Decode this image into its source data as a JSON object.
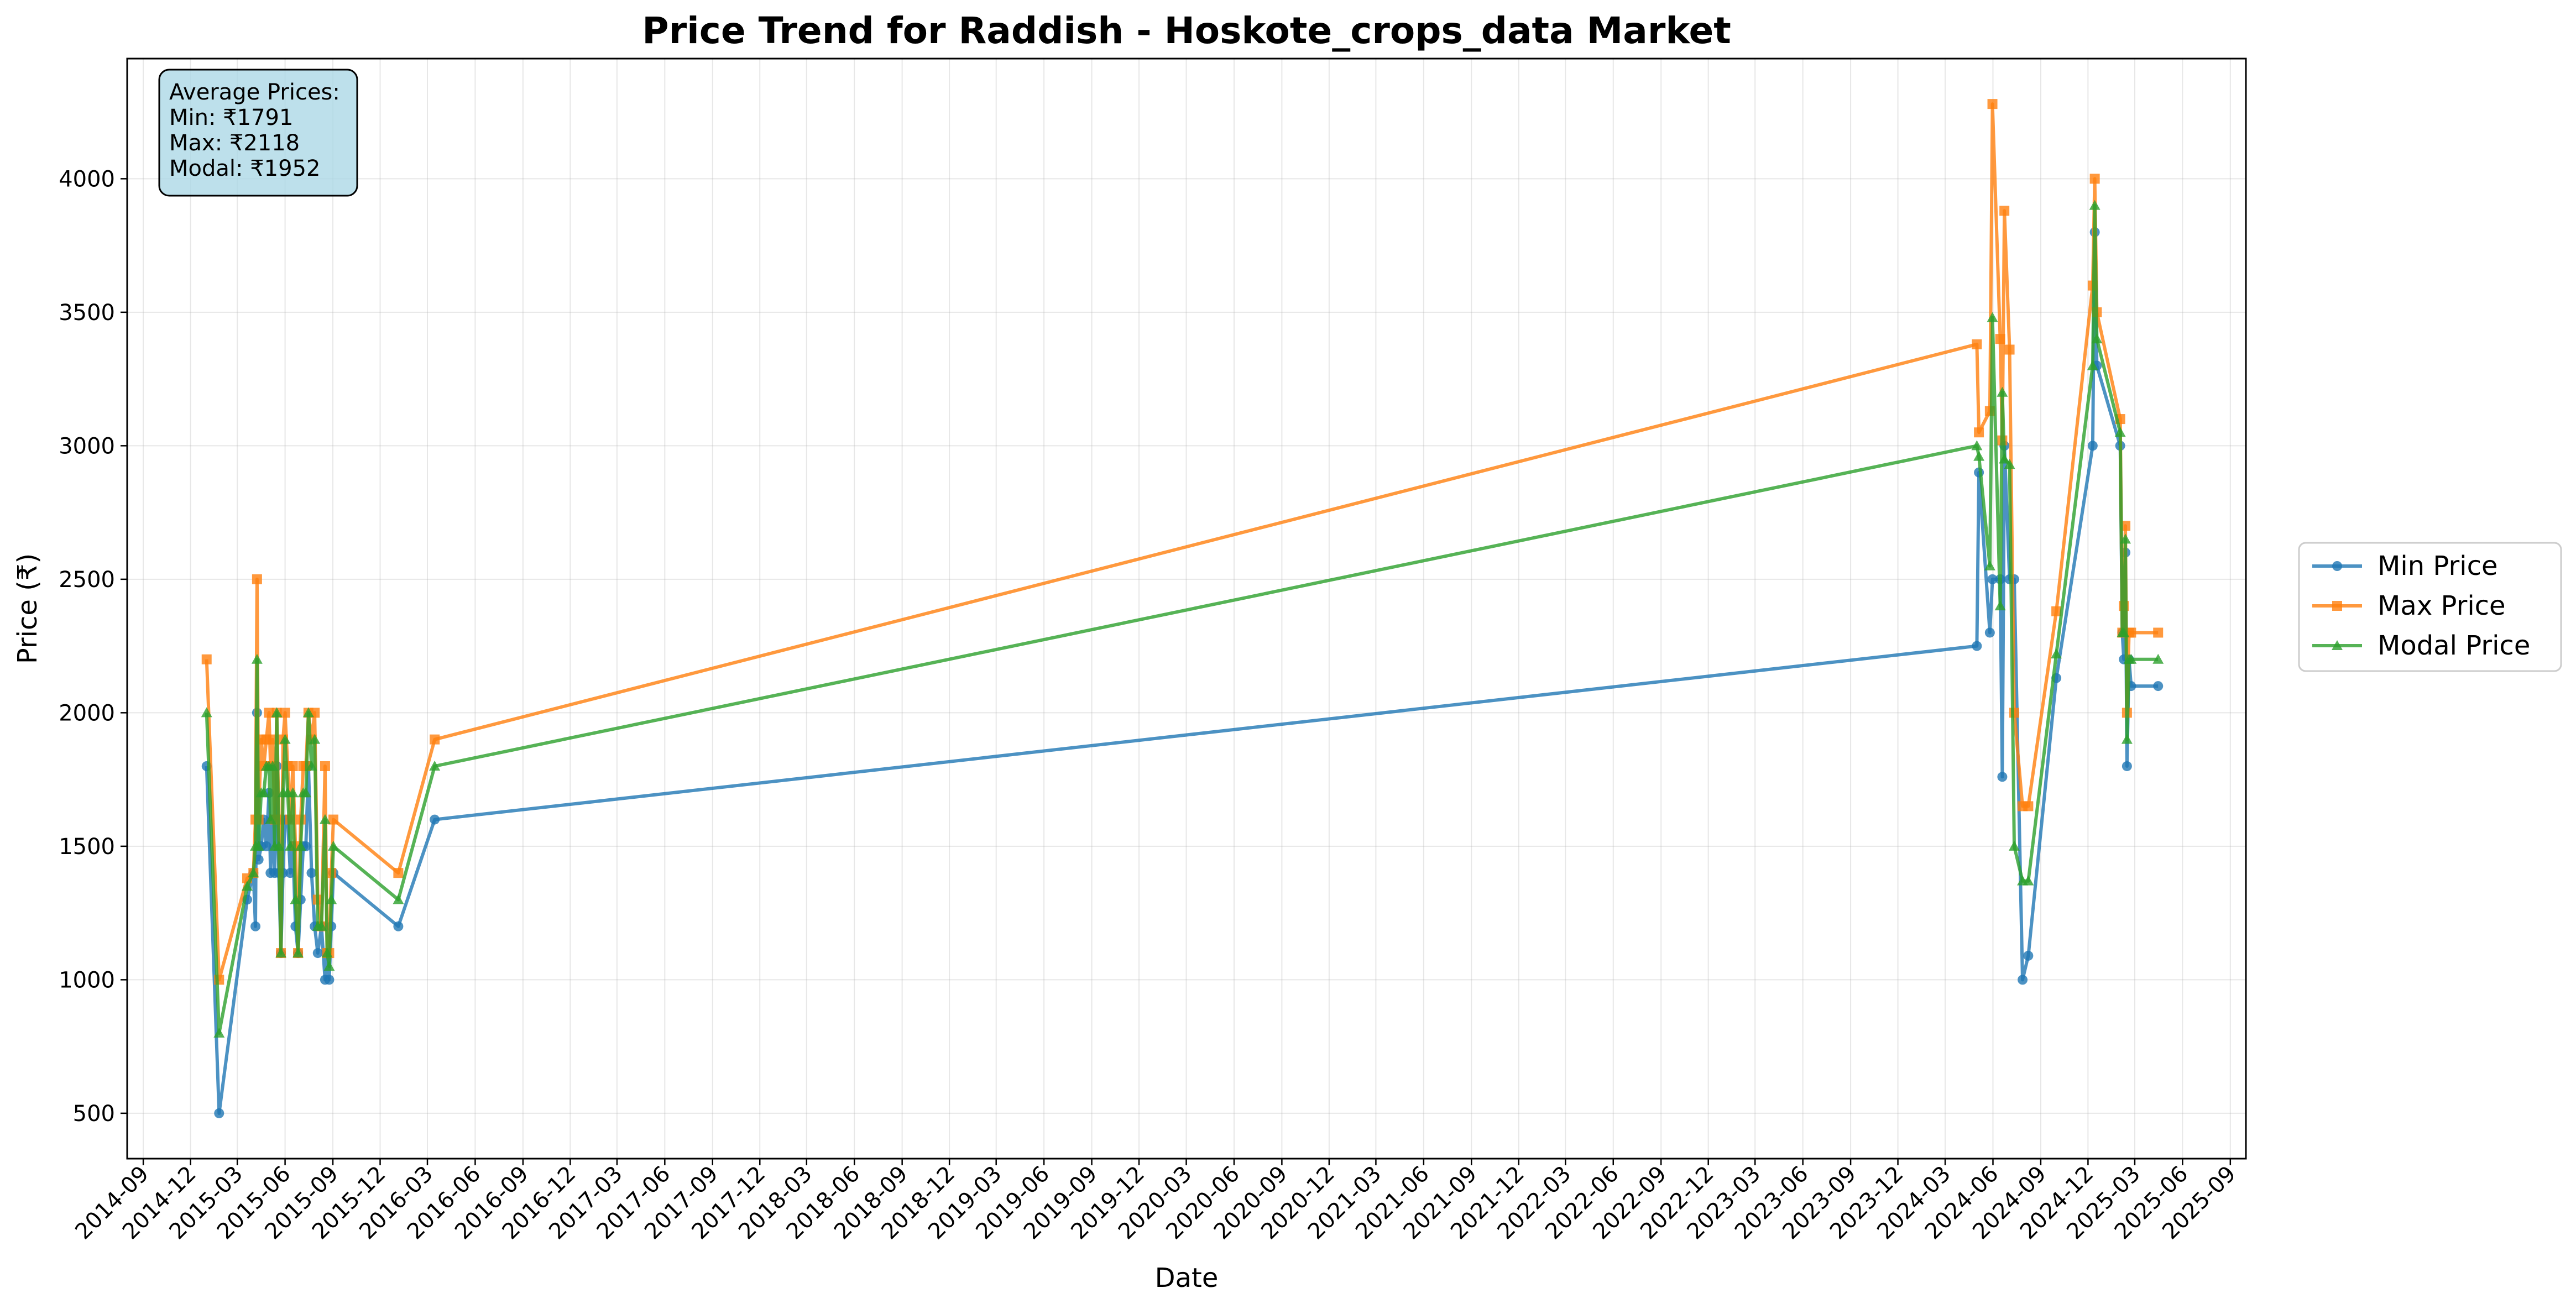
{
  "chart_data": {
    "type": "line",
    "title": "Price Trend for Raddish - Hoskote_crops_data Market",
    "xlabel": "Date",
    "ylabel": "Price (₹)",
    "ylim": [
      330,
      4450
    ],
    "xlim": [
      "2014-08-01",
      "2025-10-01"
    ],
    "grid": true,
    "legend_position": "right, outside plot",
    "yticks": [
      500,
      1000,
      1500,
      2000,
      2500,
      3000,
      3500,
      4000
    ],
    "xticks": [
      "2014-09",
      "2014-12",
      "2015-03",
      "2015-06",
      "2015-09",
      "2015-12",
      "2016-03",
      "2016-06",
      "2016-09",
      "2016-12",
      "2017-03",
      "2017-06",
      "2017-09",
      "2017-12",
      "2018-03",
      "2018-06",
      "2018-09",
      "2018-12",
      "2019-03",
      "2019-06",
      "2019-09",
      "2019-12",
      "2020-03",
      "2020-06",
      "2020-09",
      "2020-12",
      "2021-03",
      "2021-06",
      "2021-09",
      "2021-12",
      "2022-03",
      "2022-06",
      "2022-09",
      "2022-12",
      "2023-03",
      "2023-06",
      "2023-09",
      "2023-12",
      "2024-03",
      "2024-06",
      "2024-09",
      "2024-12",
      "2025-03",
      "2025-06",
      "2025-09"
    ],
    "stats_box": {
      "heading": "Average Prices:",
      "min": "Min: ₹1791",
      "max": "Max: ₹2118",
      "modal": "Modal: ₹1952"
    },
    "series": [
      {
        "name": "Min Price",
        "color": "#1f77b4",
        "marker": "circle",
        "points": [
          [
            "2015-01-01",
            1800
          ],
          [
            "2015-01-25",
            500
          ],
          [
            "2015-03-20",
            1300
          ],
          [
            "2015-04-01",
            1400
          ],
          [
            "2015-04-05",
            1200
          ],
          [
            "2015-04-08",
            2000
          ],
          [
            "2015-04-11",
            1450
          ],
          [
            "2015-04-16",
            1500
          ],
          [
            "2015-04-21",
            1600
          ],
          [
            "2015-04-26",
            1500
          ],
          [
            "2015-05-01",
            1700
          ],
          [
            "2015-05-04",
            1400
          ],
          [
            "2015-05-08",
            1600
          ],
          [
            "2015-05-12",
            1400
          ],
          [
            "2015-05-16",
            1800
          ],
          [
            "2015-05-20",
            1400
          ],
          [
            "2015-05-24",
            1100
          ],
          [
            "2015-05-28",
            1400
          ],
          [
            "2015-06-01",
            1600
          ],
          [
            "2015-06-06",
            1600
          ],
          [
            "2015-06-11",
            1400
          ],
          [
            "2015-06-16",
            1500
          ],
          [
            "2015-06-21",
            1200
          ],
          [
            "2015-06-26",
            1100
          ],
          [
            "2015-07-01",
            1300
          ],
          [
            "2015-07-06",
            1500
          ],
          [
            "2015-07-11",
            1500
          ],
          [
            "2015-07-16",
            1800
          ],
          [
            "2015-07-22",
            1400
          ],
          [
            "2015-07-28",
            1200
          ],
          [
            "2015-08-03",
            1100
          ],
          [
            "2015-08-10",
            1200
          ],
          [
            "2015-08-17",
            1000
          ],
          [
            "2015-08-21",
            1100
          ],
          [
            "2015-08-25",
            1000
          ],
          [
            "2015-08-29",
            1200
          ],
          [
            "2015-09-02",
            1400
          ],
          [
            "2016-01-05",
            1200
          ],
          [
            "2016-03-15",
            1600
          ],
          [
            "2024-05-01",
            2250
          ],
          [
            "2024-05-05",
            2900
          ],
          [
            "2024-05-26",
            2300
          ],
          [
            "2024-05-31",
            2500
          ],
          [
            "2024-06-15",
            2500
          ],
          [
            "2024-06-19",
            1760
          ],
          [
            "2024-06-23",
            3000
          ],
          [
            "2024-07-03",
            2500
          ],
          [
            "2024-07-12",
            2500
          ],
          [
            "2024-07-28",
            1000
          ],
          [
            "2024-08-08",
            1090
          ],
          [
            "2024-10-01",
            2130
          ],
          [
            "2024-12-10",
            3000
          ],
          [
            "2024-12-14",
            3800
          ],
          [
            "2024-12-18",
            3300
          ],
          [
            "2025-02-01",
            3000
          ],
          [
            "2025-02-05",
            2300
          ],
          [
            "2025-02-08",
            2200
          ],
          [
            "2025-02-11",
            2600
          ],
          [
            "2025-02-14",
            1800
          ],
          [
            "2025-02-18",
            2200
          ],
          [
            "2025-02-22",
            2100
          ],
          [
            "2025-04-15",
            2100
          ]
        ]
      },
      {
        "name": "Max Price",
        "color": "#ff7f0e",
        "marker": "square",
        "points": [
          [
            "2015-01-01",
            2200
          ],
          [
            "2015-01-25",
            1000
          ],
          [
            "2015-03-20",
            1380
          ],
          [
            "2015-04-01",
            1400
          ],
          [
            "2015-04-05",
            1600
          ],
          [
            "2015-04-08",
            2500
          ],
          [
            "2015-04-11",
            1600
          ],
          [
            "2015-04-16",
            1900
          ],
          [
            "2015-04-21",
            1800
          ],
          [
            "2015-04-26",
            1900
          ],
          [
            "2015-05-01",
            2000
          ],
          [
            "2015-05-04",
            1800
          ],
          [
            "2015-05-08",
            1900
          ],
          [
            "2015-05-12",
            1600
          ],
          [
            "2015-05-16",
            2000
          ],
          [
            "2015-05-20",
            1600
          ],
          [
            "2015-05-24",
            1100
          ],
          [
            "2015-05-28",
            1900
          ],
          [
            "2015-06-01",
            2000
          ],
          [
            "2015-06-06",
            1800
          ],
          [
            "2015-06-11",
            1600
          ],
          [
            "2015-06-16",
            1800
          ],
          [
            "2015-06-21",
            1500
          ],
          [
            "2015-06-26",
            1100
          ],
          [
            "2015-07-01",
            1600
          ],
          [
            "2015-07-06",
            1800
          ],
          [
            "2015-07-11",
            1800
          ],
          [
            "2015-07-16",
            2000
          ],
          [
            "2015-07-22",
            1900
          ],
          [
            "2015-07-28",
            2000
          ],
          [
            "2015-08-03",
            1300
          ],
          [
            "2015-08-10",
            1200
          ],
          [
            "2015-08-17",
            1800
          ],
          [
            "2015-08-21",
            1100
          ],
          [
            "2015-08-25",
            1100
          ],
          [
            "2015-08-29",
            1400
          ],
          [
            "2015-09-02",
            1600
          ],
          [
            "2016-01-05",
            1400
          ],
          [
            "2016-03-15",
            1900
          ],
          [
            "2024-05-01",
            3380
          ],
          [
            "2024-05-05",
            3050
          ],
          [
            "2024-05-26",
            3130
          ],
          [
            "2024-05-31",
            4280
          ],
          [
            "2024-06-15",
            3400
          ],
          [
            "2024-06-19",
            3020
          ],
          [
            "2024-06-23",
            3880
          ],
          [
            "2024-07-03",
            3360
          ],
          [
            "2024-07-12",
            2000
          ],
          [
            "2024-07-28",
            1650
          ],
          [
            "2024-08-08",
            1650
          ],
          [
            "2024-10-01",
            2380
          ],
          [
            "2024-12-10",
            3600
          ],
          [
            "2024-12-14",
            4000
          ],
          [
            "2024-12-18",
            3500
          ],
          [
            "2025-02-01",
            3100
          ],
          [
            "2025-02-05",
            2300
          ],
          [
            "2025-02-08",
            2400
          ],
          [
            "2025-02-11",
            2700
          ],
          [
            "2025-02-14",
            2000
          ],
          [
            "2025-02-18",
            2300
          ],
          [
            "2025-02-22",
            2300
          ],
          [
            "2025-04-15",
            2300
          ]
        ]
      },
      {
        "name": "Modal Price",
        "color": "#2ca02c",
        "marker": "triangle",
        "points": [
          [
            "2015-01-01",
            2000
          ],
          [
            "2015-01-25",
            800
          ],
          [
            "2015-03-20",
            1350
          ],
          [
            "2015-04-01",
            1400
          ],
          [
            "2015-04-05",
            1500
          ],
          [
            "2015-04-08",
            2200
          ],
          [
            "2015-04-11",
            1500
          ],
          [
            "2015-04-16",
            1700
          ],
          [
            "2015-04-21",
            1700
          ],
          [
            "2015-04-26",
            1800
          ],
          [
            "2015-05-01",
            1800
          ],
          [
            "2015-05-04",
            1600
          ],
          [
            "2015-05-08",
            1800
          ],
          [
            "2015-05-12",
            1500
          ],
          [
            "2015-05-16",
            2000
          ],
          [
            "2015-05-20",
            1500
          ],
          [
            "2015-05-24",
            1100
          ],
          [
            "2015-05-28",
            1700
          ],
          [
            "2015-06-01",
            1900
          ],
          [
            "2015-06-06",
            1700
          ],
          [
            "2015-06-11",
            1500
          ],
          [
            "2015-06-16",
            1700
          ],
          [
            "2015-06-21",
            1300
          ],
          [
            "2015-06-26",
            1100
          ],
          [
            "2015-07-01",
            1500
          ],
          [
            "2015-07-06",
            1700
          ],
          [
            "2015-07-11",
            1700
          ],
          [
            "2015-07-16",
            2000
          ],
          [
            "2015-07-22",
            1800
          ],
          [
            "2015-07-28",
            1900
          ],
          [
            "2015-08-03",
            1200
          ],
          [
            "2015-08-10",
            1200
          ],
          [
            "2015-08-17",
            1600
          ],
          [
            "2015-08-21",
            1100
          ],
          [
            "2015-08-25",
            1050
          ],
          [
            "2015-08-29",
            1300
          ],
          [
            "2015-09-02",
            1500
          ],
          [
            "2016-01-05",
            1300
          ],
          [
            "2016-03-15",
            1800
          ],
          [
            "2024-05-01",
            3000
          ],
          [
            "2024-05-05",
            2960
          ],
          [
            "2024-05-26",
            2550
          ],
          [
            "2024-05-31",
            3480
          ],
          [
            "2024-06-15",
            2400
          ],
          [
            "2024-06-19",
            3200
          ],
          [
            "2024-06-23",
            2950
          ],
          [
            "2024-07-03",
            2930
          ],
          [
            "2024-07-12",
            1500
          ],
          [
            "2024-07-28",
            1370
          ],
          [
            "2024-08-08",
            1370
          ],
          [
            "2024-10-01",
            2220
          ],
          [
            "2024-12-10",
            3300
          ],
          [
            "2024-12-14",
            3900
          ],
          [
            "2024-12-18",
            3400
          ],
          [
            "2025-02-01",
            3050
          ],
          [
            "2025-02-05",
            2300
          ],
          [
            "2025-02-08",
            2300
          ],
          [
            "2025-02-11",
            2650
          ],
          [
            "2025-02-14",
            1900
          ],
          [
            "2025-02-18",
            2200
          ],
          [
            "2025-02-22",
            2200
          ],
          [
            "2025-04-15",
            2200
          ]
        ]
      }
    ]
  }
}
